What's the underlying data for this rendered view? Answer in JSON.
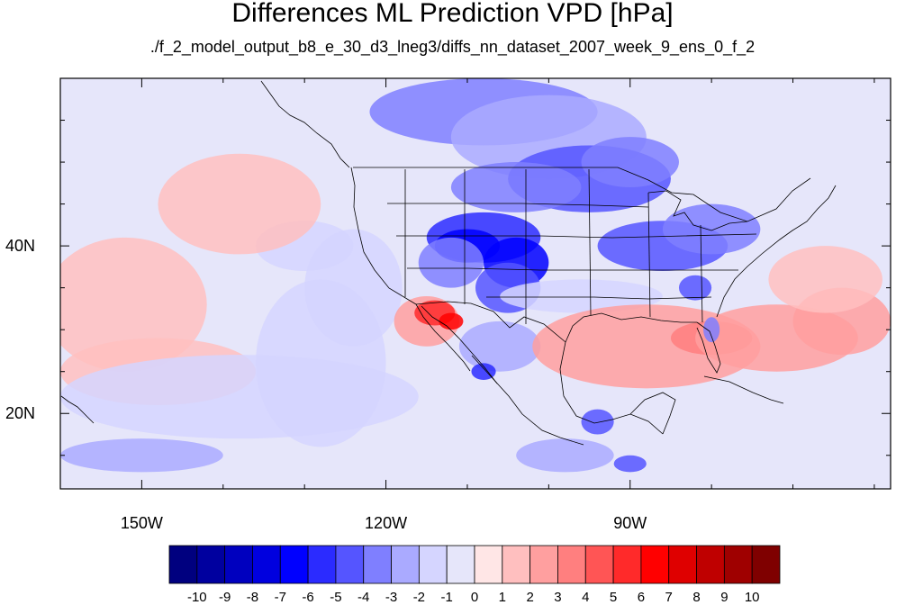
{
  "title": "Differences ML Prediction VPD [hPa]",
  "subtitle": "./f_2_model_output_b8_e_30_d3_lneg3/diffs_nn_dataset_2007_week_9_ens_0_f_2",
  "map": {
    "projection": "cylindrical-equidistant",
    "lon_range": [
      -160,
      -58
    ],
    "lat_range": [
      11,
      60
    ],
    "lon_ticks": [
      {
        "value": -150,
        "label": "150W"
      },
      {
        "value": -120,
        "label": "120W"
      },
      {
        "value": -90,
        "label": "90W"
      }
    ],
    "lat_ticks": [
      {
        "value": 40,
        "label": "40N"
      },
      {
        "value": 20,
        "label": "20N"
      }
    ],
    "minor_lon_ticks": [
      -140,
      -130,
      -110,
      -100,
      -80,
      -70,
      -60
    ],
    "minor_lat_ticks": [
      15,
      25,
      30,
      35,
      45,
      50,
      55
    ]
  },
  "colorbar": {
    "colors": [
      "#00007f",
      "#00009f",
      "#0000bf",
      "#0000df",
      "#0000ff",
      "#2b2bff",
      "#5555ff",
      "#7f7fff",
      "#aaaaff",
      "#d5d5ff",
      "#e6e6fa",
      "#ffe6e6",
      "#ffbfbf",
      "#ff9f9f",
      "#ff7f7f",
      "#ff5555",
      "#ff2a2a",
      "#ff0000",
      "#df0000",
      "#bf0000",
      "#9f0000",
      "#7f0000"
    ],
    "labels": [
      "-10",
      "-9",
      "-8",
      "-7",
      "-6",
      "-5",
      "-4",
      "-3",
      "-2",
      "-1",
      "0",
      "1",
      "2",
      "3",
      "4",
      "5",
      "6",
      "7",
      "8",
      "9",
      "10"
    ]
  },
  "field_regions": [
    {
      "lon": -152,
      "lat": 33,
      "rx": 10,
      "ry": 8,
      "val": 1
    },
    {
      "lon": -148,
      "lat": 25,
      "rx": 12,
      "ry": 4,
      "val": 1
    },
    {
      "lon": -138,
      "lat": 22,
      "rx": 22,
      "ry": 5,
      "val": -1
    },
    {
      "lon": -128,
      "lat": 26,
      "rx": 8,
      "ry": 10,
      "val": -1
    },
    {
      "lon": -124,
      "lat": 35,
      "rx": 6,
      "ry": 7,
      "val": -1
    },
    {
      "lon": -130,
      "lat": 40,
      "rx": 6,
      "ry": 3,
      "val": -1
    },
    {
      "lon": -150,
      "lat": 15,
      "rx": 10,
      "ry": 2,
      "val": -2
    },
    {
      "lon": -138,
      "lat": 45,
      "rx": 10,
      "ry": 6,
      "val": 1
    },
    {
      "lon": -108,
      "lat": 56,
      "rx": 14,
      "ry": 4,
      "val": -3
    },
    {
      "lon": -100,
      "lat": 53,
      "rx": 12,
      "ry": 5,
      "val": -2
    },
    {
      "lon": -95,
      "lat": 48,
      "rx": 10,
      "ry": 4,
      "val": -4
    },
    {
      "lon": -90,
      "lat": 50,
      "rx": 6,
      "ry": 3,
      "val": -3
    },
    {
      "lon": -104,
      "lat": 47,
      "rx": 8,
      "ry": 3,
      "val": -3
    },
    {
      "lon": -108,
      "lat": 41,
      "rx": 7,
      "ry": 3,
      "val": -5
    },
    {
      "lon": -110,
      "lat": 40,
      "rx": 4,
      "ry": 2,
      "val": -6
    },
    {
      "lon": -104,
      "lat": 38,
      "rx": 4,
      "ry": 3,
      "val": -6
    },
    {
      "lon": -105,
      "lat": 35,
      "rx": 4,
      "ry": 3,
      "val": -4
    },
    {
      "lon": -112,
      "lat": 38,
      "rx": 4,
      "ry": 3,
      "val": -3
    },
    {
      "lon": -86,
      "lat": 40,
      "rx": 8,
      "ry": 3,
      "val": -4
    },
    {
      "lon": -80,
      "lat": 42,
      "rx": 6,
      "ry": 3,
      "val": -3
    },
    {
      "lon": -82,
      "lat": 35,
      "rx": 2,
      "ry": 1.5,
      "val": -4
    },
    {
      "lon": -96,
      "lat": 34,
      "rx": 10,
      "ry": 2,
      "val": -1
    },
    {
      "lon": -106,
      "lat": 28,
      "rx": 5,
      "ry": 3,
      "val": -2
    },
    {
      "lon": -88,
      "lat": 28,
      "rx": 14,
      "ry": 5,
      "val": 2
    },
    {
      "lon": -80,
      "lat": 29,
      "rx": 5,
      "ry": 2,
      "val": 3
    },
    {
      "lon": -72,
      "lat": 29,
      "rx": 10,
      "ry": 4,
      "val": 2
    },
    {
      "lon": -64,
      "lat": 31,
      "rx": 6,
      "ry": 4,
      "val": 2
    },
    {
      "lon": -66,
      "lat": 36,
      "rx": 7,
      "ry": 4,
      "val": 1
    },
    {
      "lon": -115,
      "lat": 31,
      "rx": 4,
      "ry": 3,
      "val": 2
    },
    {
      "lon": -114,
      "lat": 32,
      "rx": 2.5,
      "ry": 1.5,
      "val": 5
    },
    {
      "lon": -112,
      "lat": 31,
      "rx": 1.5,
      "ry": 1,
      "val": 6
    },
    {
      "lon": -108,
      "lat": 25,
      "rx": 1.5,
      "ry": 1,
      "val": -5
    },
    {
      "lon": -94,
      "lat": 19,
      "rx": 2,
      "ry": 1.5,
      "val": -4
    },
    {
      "lon": -90,
      "lat": 14,
      "rx": 2,
      "ry": 1,
      "val": -4
    },
    {
      "lon": -98,
      "lat": 15,
      "rx": 6,
      "ry": 2,
      "val": -2
    },
    {
      "lon": -80,
      "lat": 30,
      "rx": 1,
      "ry": 1.5,
      "val": -3
    }
  ]
}
